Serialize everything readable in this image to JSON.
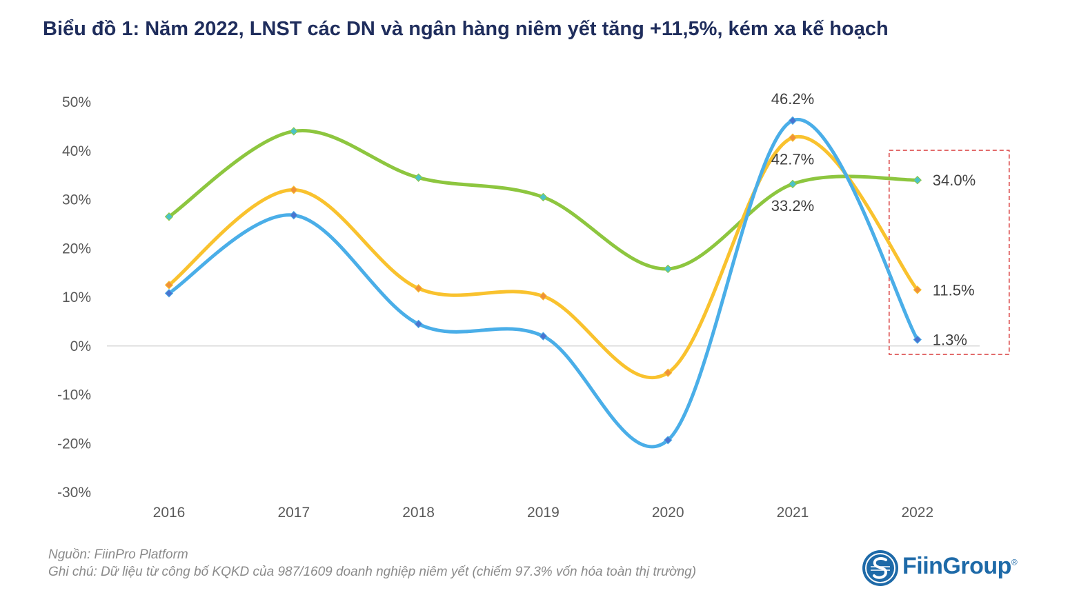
{
  "title": "Biểu đồ 1: Năm 2022, LNST các DN và ngân hàng niêm yết tăng +11,5%, kém xa kế hoạch",
  "chart_data": {
    "type": "line",
    "smooth": true,
    "categories": [
      "2016",
      "2017",
      "2018",
      "2019",
      "2020",
      "2021",
      "2022"
    ],
    "ylim": [
      -30,
      50
    ],
    "yticks": [
      50,
      40,
      30,
      20,
      10,
      0,
      -10,
      -20,
      -30
    ],
    "ytick_labels": [
      "50%",
      "40%",
      "30%",
      "20%",
      "10%",
      "0%",
      "-10%",
      "-20%",
      "-30%"
    ],
    "grid": false,
    "legend": "none",
    "series": [
      {
        "name": "green",
        "color": "#8dc63f",
        "marker_color": "#4bc3c9",
        "values": [
          26.5,
          44.0,
          34.5,
          30.5,
          15.8,
          33.2,
          34.0
        ]
      },
      {
        "name": "yellow",
        "color": "#f9c22e",
        "marker_color": "#f0913a",
        "values": [
          12.5,
          32.0,
          11.8,
          10.2,
          -5.5,
          42.7,
          11.5
        ]
      },
      {
        "name": "blue",
        "color": "#4aaee8",
        "marker_color": "#4a74d0",
        "values": [
          10.8,
          26.8,
          4.5,
          2.0,
          -19.3,
          46.2,
          1.3
        ]
      }
    ],
    "data_labels": [
      {
        "series": "blue",
        "category": "2021",
        "text": "46.2%",
        "position": "above"
      },
      {
        "series": "yellow",
        "category": "2021",
        "text": "42.7%",
        "position": "below"
      },
      {
        "series": "green",
        "category": "2021",
        "text": "33.2%",
        "position": "below"
      },
      {
        "series": "green",
        "category": "2022",
        "text": "34.0%",
        "position": "right"
      },
      {
        "series": "yellow",
        "category": "2022",
        "text": "11.5%",
        "position": "right"
      },
      {
        "series": "blue",
        "category": "2022",
        "text": "1.3%",
        "position": "right"
      }
    ],
    "highlight": {
      "category": "2022",
      "style": "dashed-box",
      "color": "#d93a3a"
    }
  },
  "footnotes": {
    "source": "Nguồn: FiinPro Platform",
    "note": "Ghi chú: Dữ liệu từ công bố KQKD của 987/1609 doanh nghiệp niêm yết (chiếm 97.3% vốn hóa toàn thị trường)"
  },
  "logo": {
    "text": "FiinGroup",
    "icon": "fiingroup-logo-icon",
    "trademark": "®"
  }
}
